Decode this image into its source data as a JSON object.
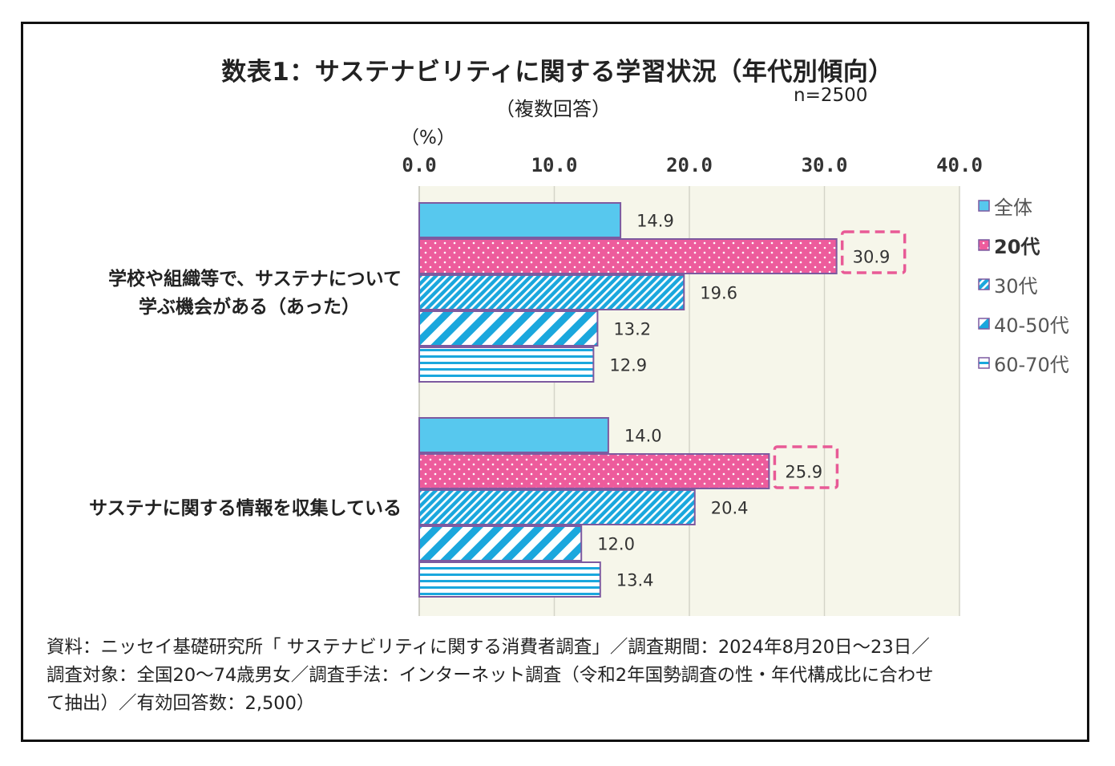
{
  "title": "数表1：サステナビリティに関する学習状況（年代別傾向）",
  "subtitle": "（複数回答）",
  "sample_size": "n=2500",
  "unit": "（%）",
  "colors": {
    "all": "#57c8ee",
    "twenties": "#ed5c9c",
    "thirties": "#1aa7dd",
    "forties_fifties": "#1aa7dd",
    "sixties_seventies": "#1aa7dd",
    "bar_edge": "#7d5aa0",
    "highlight_box": "#e85a96",
    "plot_bg": "#f6f6ea"
  },
  "footnote": [
    "資料：ニッセイ基礎研究所「 サステナビリティに関する消費者調査」／調査期間：2024年8月20日～23日／",
    "調査対象：全国20～74歳男女／調査手法：インターネット調査（令和2年国勢調査の性・年代構成比に合わせ",
    "て抽出）／有効回答数：2,500）"
  ],
  "chart_data": {
    "type": "bar",
    "orientation": "horizontal",
    "xlim": [
      0,
      40
    ],
    "ticks": [
      "0.0",
      "10.0",
      "20.0",
      "30.0",
      "40.0"
    ],
    "tick_values": [
      0,
      10,
      20,
      30,
      40
    ],
    "grid": true,
    "legend_position": "right",
    "categories": [
      [
        "学校や組織等で、サステナについて",
        "学ぶ機会がある（あった）"
      ],
      [
        "サステナに関する情報を収集している"
      ]
    ],
    "series": [
      {
        "name": "全体",
        "values": [
          14.9,
          14.0
        ],
        "labels": [
          "14.9",
          "14.0"
        ],
        "pattern": "solid"
      },
      {
        "name": "20代",
        "values": [
          30.9,
          25.9
        ],
        "labels": [
          "30.9",
          "25.9"
        ],
        "pattern": "dots",
        "highlighted": true
      },
      {
        "name": "30代",
        "values": [
          19.6,
          20.4
        ],
        "labels": [
          "19.6",
          "20.4"
        ],
        "pattern": "fine-diagonal"
      },
      {
        "name": "40-50代",
        "values": [
          13.2,
          12.0
        ],
        "labels": [
          "13.2",
          "12.0"
        ],
        "pattern": "wide-diagonal"
      },
      {
        "name": "60-70代",
        "values": [
          12.9,
          13.4
        ],
        "labels": [
          "12.9",
          "13.4"
        ],
        "pattern": "horizontal-stripes"
      }
    ]
  }
}
